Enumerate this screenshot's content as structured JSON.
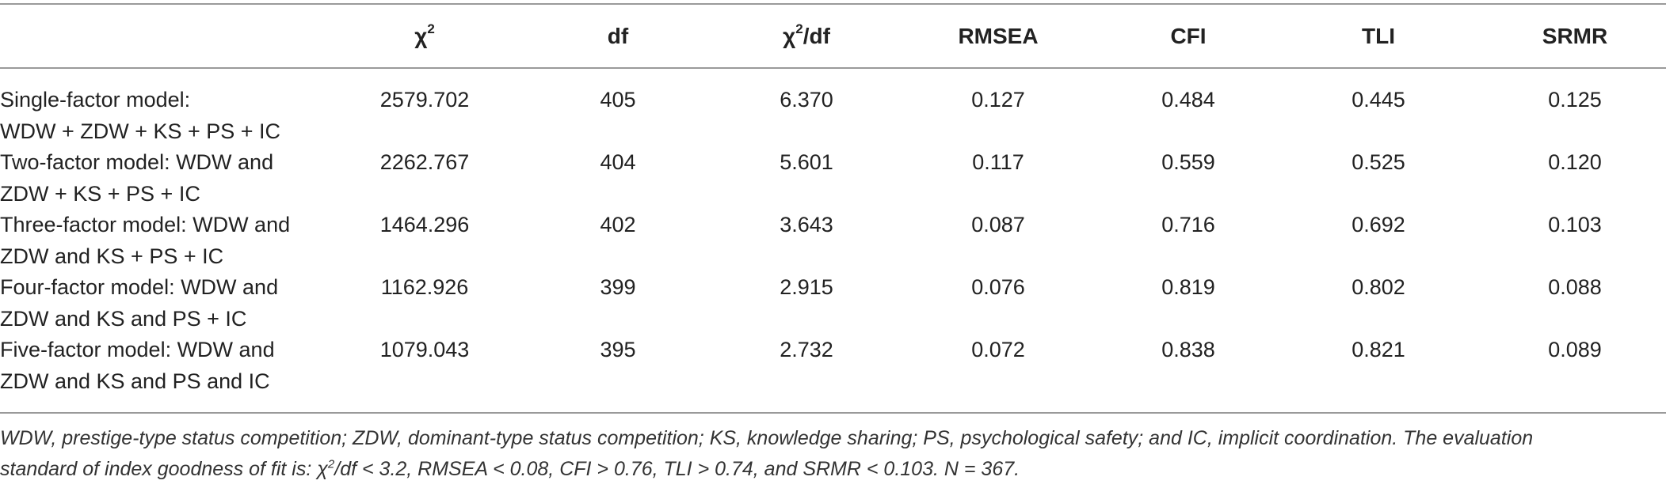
{
  "table": {
    "headers": {
      "chi_symbol": "χ",
      "chi_sup": "2",
      "df": "df",
      "chidf_symbol": "χ",
      "chidf_sup": "2",
      "chidf_tail": "/df",
      "rmsea": "RMSEA",
      "cfi": "CFI",
      "tli": "TLI",
      "srmr": "SRMR"
    },
    "rows": [
      {
        "label_line1": "Single-factor model:",
        "label_line2": "WDW + ZDW + KS + PS + IC",
        "chi": "2579.702",
        "df": "405",
        "chidf": "6.370",
        "rmsea": "0.127",
        "cfi": "0.484",
        "tli": "0.445",
        "srmr": "0.125"
      },
      {
        "label_line1": "Two-factor model: WDW and",
        "label_line2": "ZDW + KS + PS + IC",
        "chi": "2262.767",
        "df": "404",
        "chidf": "5.601",
        "rmsea": "0.117",
        "cfi": "0.559",
        "tli": "0.525",
        "srmr": "0.120"
      },
      {
        "label_line1": "Three-factor model: WDW and",
        "label_line2": "ZDW and KS + PS + IC",
        "chi": "1464.296",
        "df": "402",
        "chidf": "3.643",
        "rmsea": "0.087",
        "cfi": "0.716",
        "tli": "0.692",
        "srmr": "0.103"
      },
      {
        "label_line1": "Four-factor model: WDW and",
        "label_line2": "ZDW and KS and PS + IC",
        "chi": "1162.926",
        "df": "399",
        "chidf": "2.915",
        "rmsea": "0.076",
        "cfi": "0.819",
        "tli": "0.802",
        "srmr": "0.088"
      },
      {
        "label_line1": "Five-factor model: WDW and",
        "label_line2": "ZDW and KS and PS and IC",
        "chi": "1079.043",
        "df": "395",
        "chidf": "2.732",
        "rmsea": "0.072",
        "cfi": "0.838",
        "tli": "0.821",
        "srmr": "0.089"
      }
    ]
  },
  "note": {
    "line1": "WDW, prestige-type status competition; ZDW, dominant-type status competition; KS, knowledge sharing; PS, psychological safety; and IC, implicit coordination. The evaluation",
    "line2_pre": "standard of index goodness of fit is: χ",
    "line2_sup": "2",
    "line2_post": "/df < 3.2, RMSEA < 0.08, CFI > 0.76, TLI > 0.74, and SRMR < 0.103. N = 367."
  }
}
